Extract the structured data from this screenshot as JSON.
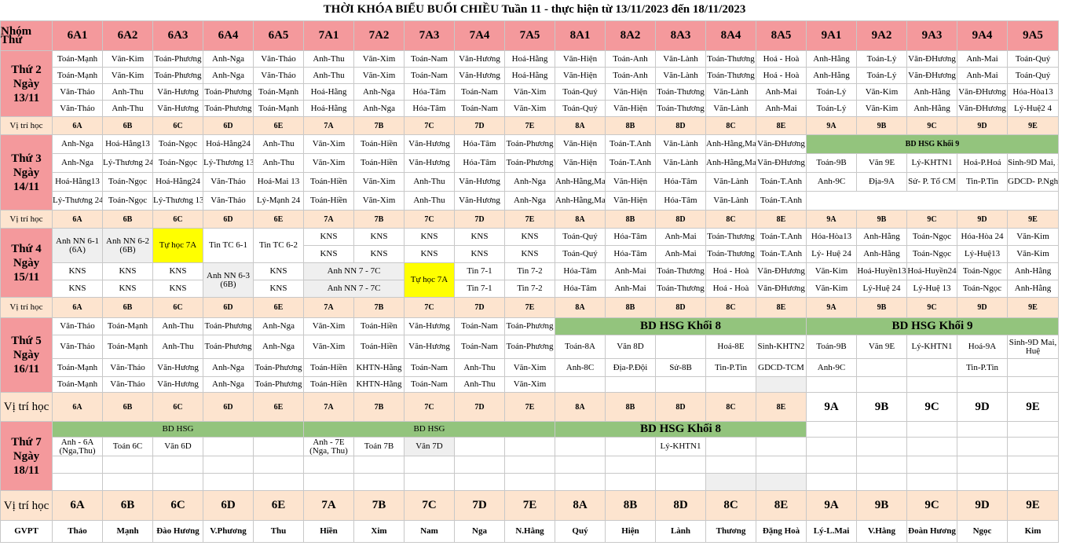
{
  "title": "THỜI KHÓA BIỂU BUỔI CHIỀU Tuần 11 - thực hiện từ 13/11/2023 đến 18/11/2023",
  "classes": [
    "6A1",
    "6A2",
    "6A3",
    "6A4",
    "6A5",
    "7A1",
    "7A2",
    "7A3",
    "7A4",
    "7A5",
    "8A1",
    "8A2",
    "8A3",
    "8A4",
    "8A5",
    "9A1",
    "9A2",
    "9A3",
    "9A4",
    "9A5"
  ],
  "header": {
    "group": "Nhóm",
    "day": "Thứ"
  },
  "rooms_label": "Vị trí học",
  "rooms": [
    "6A",
    "6B",
    "6C",
    "6D",
    "6E",
    "7A",
    "7B",
    "7C",
    "7D",
    "7E",
    "8A",
    "8B",
    "8D",
    "8C",
    "8E",
    "9A",
    "9B",
    "9C",
    "9D",
    "9E"
  ],
  "days": [
    {
      "name": "Thứ 2",
      "date_label": "Ngày",
      "date": "13/11"
    },
    {
      "name": "Thứ 3",
      "date_label": "Ngày",
      "date": "14/11"
    },
    {
      "name": "Thứ 4",
      "date_label": "Ngày",
      "date": "15/11"
    },
    {
      "name": "Thứ 5",
      "date_label": "Ngày",
      "date": "16/11"
    },
    {
      "name": "Thứ 7",
      "date_label": "Ngày",
      "date": "18/11"
    }
  ],
  "mon": [
    [
      "Toán-Mạnh",
      "Văn-Kim",
      "Toán-Phương",
      "Anh-Nga",
      "Văn-Thảo",
      "Anh-Thu",
      "Văn-Xim",
      "Toán-Nam",
      "Văn-Hương",
      "Hoá-Hằng",
      "Văn-Hiện",
      "Toán-Anh",
      "Văn-Lành",
      "Toán-Thương",
      "Hoá - Hoà",
      "Anh-Hằng",
      "Toán-Lý",
      "Văn-ĐHương",
      "Anh-Mai",
      "Toán-Quý"
    ],
    [
      "Toán-Mạnh",
      "Văn-Kim",
      "Toán-Phương",
      "Anh-Nga",
      "Văn-Thảo",
      "Anh-Thu",
      "Văn-Xim",
      "Toán-Nam",
      "Văn-Hương",
      "Hoá-Hằng",
      "Văn-Hiện",
      "Toán-Anh",
      "Văn-Lành",
      "Toán-Thương",
      "Hoá - Hoà",
      "Anh-Hằng",
      "Toán-Lý",
      "Văn-ĐHương",
      "Anh-Mai",
      "Toán-Quý"
    ],
    [
      "Văn-Thảo",
      "Anh-Thu",
      "Văn-Hương",
      "Toán-Phương",
      "Toán-Mạnh",
      "Hoá-Hằng",
      "Anh-Nga",
      "Hóa-Tâm",
      "Toán-Nam",
      "Văn-Xim",
      "Toán-Quý",
      "Văn-Hiện",
      "Toán-Thương",
      "Văn-Lành",
      "Anh-Mai",
      "Toán-Lý",
      "Văn-Kim",
      "Anh-Hằng",
      "Văn-ĐHương",
      "Hóa-Hòa13"
    ],
    [
      "Văn-Thảo",
      "Anh-Thu",
      "Văn-Hương",
      "Toán-Phương",
      "Toán-Mạnh",
      "Hoá-Hằng",
      "Anh-Nga",
      "Hóa-Tâm",
      "Toán-Nam",
      "Văn-Xim",
      "Toán-Quý",
      "Văn-Hiện",
      "Toán-Thương",
      "Văn-Lành",
      "Anh-Mai",
      "Toán-Lý",
      "Văn-Kim",
      "Anh-Hằng",
      "Văn-ĐHương",
      "Lý-Huệ2 4"
    ]
  ],
  "tue_banner": "BD HSG Khối 9",
  "tue_r1": [
    "Anh-Nga",
    "Hoá-Hằng13",
    "Toán-Ngọc",
    "Hoá-Hằng24",
    "Anh-Thu",
    "Văn-Xim",
    "Toán-Hiền",
    "Văn-Hương",
    "Hóa-Tâm",
    "Toán-Phương",
    "Văn-Hiện",
    "Toán-T.Anh",
    "Văn-Lành",
    "Anh-Hằng,Mai",
    "Văn-ĐHương"
  ],
  "tue_r2": [
    "Anh-Nga",
    "Lý-Thương 24",
    "Toán-Ngọc",
    "Lý-Thương 13",
    "Anh-Thu",
    "Văn-Xim",
    "Toán-Hiền",
    "Văn-Hương",
    "Hóa-Tâm",
    "Toán-Phương",
    "Văn-Hiện",
    "Toán-T.Anh",
    "Văn-Lành",
    "Anh-Hằng,Mai",
    "Văn-ĐHương",
    "Toán-9B",
    "Văn 9E",
    "Lý-KHTN1",
    "Hoá-P.Hoá",
    "Sinh-9D Mai, Huệ"
  ],
  "tue_r3": [
    "Hoá-Hằng13",
    "Toán-Ngọc",
    "Hoá-Hằng24",
    "Văn-Thảo",
    "Hoá-Mai 13",
    "Toán-Hiền",
    "Văn-Xim",
    "Anh-Thu",
    "Văn-Hương",
    "Anh-Nga",
    "Anh-Hằng,Mai",
    "Văn-Hiện",
    "Hóa-Tâm",
    "Văn-Lành",
    "Toán-T.Anh",
    "Anh-9C",
    "Địa-9A",
    "Sử- P. Tổ CM",
    "Tin-P.Tin",
    "GDCD- P.Nghe"
  ],
  "tue_r4": [
    "Lý-Thương 24",
    "Toán-Ngọc",
    "Lý-Thương 13",
    "Văn-Thảo",
    "Lý-Mạnh 24",
    "Toán-Hiền",
    "Văn-Xim",
    "Anh-Thu",
    "Văn-Hương",
    "Anh-Nga",
    "Anh-Hằng,Mai",
    "Văn-Hiện",
    "Hóa-Tâm",
    "Văn-Lành",
    "Toán-T.Anh"
  ],
  "wed": {
    "anh61": "Anh NN 6-1 (6A)",
    "anh62": "Anh NN 6-2 (6B)",
    "tuhoc": "Tự học 7A",
    "tin61": "Tin TC 6-1",
    "tin62": "Tin TC 6-2",
    "kns": "KNS",
    "anh63": "Anh NN 6-3 (6B)",
    "anh77": "Anh  NN 7 - 7C",
    "tin71": "Tin 7-1",
    "tin72": "Tin 7-2",
    "r1b": [
      "Toán-Quý",
      "Hóa-Tâm",
      "Anh-Mai",
      "Toán-Thương",
      "Toán-T.Anh",
      "Hóa-Hòa13",
      "Anh-Hằng",
      "Toán-Ngọc",
      "Hóa-Hòa 24",
      "Văn-Kim"
    ],
    "r2b": [
      "Toán-Quý",
      "Hóa-Tâm",
      "Anh-Mai",
      "Toán-Thương",
      "Toán-T.Anh",
      "Lý- Huệ 24",
      "Anh-Hằng",
      "Toán-Ngọc",
      "Lý-Huệ13",
      "Văn-Kim"
    ],
    "r3b": [
      "Hóa-Tâm",
      "Anh-Mai",
      "Toán-Thương",
      "Hoá - Hoà",
      "Văn-ĐHương",
      "Văn-Kim",
      "Hoá-Huyền13",
      "Hoá-Huyền24",
      "Toán-Ngọc",
      "Anh-Hằng"
    ],
    "r4b": [
      "Hóa-Tâm",
      "Anh-Mai",
      "Toán-Thương",
      "Hoá - Hoà",
      "Văn-ĐHương",
      "Văn-Kim",
      "Lý-Huệ 24",
      "Lý-Huệ 13",
      "Toán-Ngọc",
      "Anh-Hằng"
    ]
  },
  "thu": {
    "banner8": "BD HSG Khối 8",
    "banner9": "BD HSG Khối 9",
    "r1": [
      "Văn-Thảo",
      "Toán-Mạnh",
      "Anh-Thu",
      "Toán-Phương",
      "Anh-Nga",
      "Văn-Xim",
      "Toán-Hiền",
      "Văn-Hương",
      "Toán-Nam",
      "Toán-Phương"
    ],
    "r2": [
      "Văn-Thảo",
      "Toán-Mạnh",
      "Anh-Thu",
      "Toán-Phương",
      "Anh-Nga",
      "Văn-Xim",
      "Toán-Hiền",
      "Văn-Hương",
      "Toán-Nam",
      "Toán-Phương",
      "Toán-8A",
      "Văn 8D",
      "",
      "Hoá-8E",
      "Sinh-KHTN2",
      "Toán-9B",
      "Văn 9E",
      "Lý-KHTN1",
      "Hoá-9A",
      "Sinh-9D Mai, Huệ"
    ],
    "r3": [
      "Toán-Mạnh",
      "Văn-Thảo",
      "Văn-Hương",
      "Anh-Nga",
      "Toán-Phương",
      "Toán-Hiền",
      "KHTN-Hằng",
      "Toán-Nam",
      "Anh-Thu",
      "Văn-Xim",
      "Anh-8C",
      "Địa-P.Đội",
      "Sử-8B",
      "Tin-P.Tin",
      "GDCD-TCM",
      "Anh-9C",
      "",
      "",
      "Tin-P.Tin",
      ""
    ],
    "r4": [
      "Toán-Mạnh",
      "Văn-Thảo",
      "Văn-Hương",
      "Anh-Nga",
      "Toán-Phương",
      "Toán-Hiền",
      "KHTN-Hằng",
      "Toán-Nam",
      "Anh-Thu",
      "Văn-Xim"
    ]
  },
  "sat": {
    "bd1": "BD HSG",
    "bd2": "BD HSG",
    "bd3": "BD HSG Khối 8",
    "r1": [
      "Anh - 6A (Nga,Thu)",
      "Toán 6C",
      "Văn 6D",
      "",
      "",
      "Anh - 7E (Nga, Thu)",
      "Toán 7B",
      "Văn 7D",
      "",
      "",
      "",
      "",
      "Lý-KHTN1",
      "",
      "",
      "",
      "",
      "",
      "",
      ""
    ]
  },
  "gvpt_label": "GVPT",
  "gvpt": [
    "Thảo",
    "Mạnh",
    "Đào Hương",
    "V.Phương",
    "Thu",
    "Hiền",
    "Xim",
    "Nam",
    "Nga",
    "N.Hằng",
    "Quý",
    "Hiện",
    "Lành",
    "Thương",
    "Đặng Hoà",
    "Lý-L.Mai",
    "V.Hằng",
    "Đoàn Hương",
    "Ngọc",
    "Kim"
  ]
}
